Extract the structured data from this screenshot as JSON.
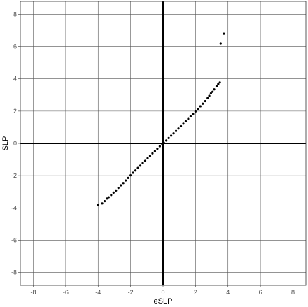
{
  "chart_data": {
    "type": "scatter",
    "title": "",
    "xlabel": "eSLP",
    "ylabel": "SLP",
    "xlim": [
      -8.8,
      8.8
    ],
    "ylim": [
      -8.8,
      8.8
    ],
    "xticks": [
      -8,
      -6,
      -4,
      -2,
      0,
      2,
      4,
      6,
      8
    ],
    "yticks": [
      -8,
      -6,
      -4,
      -2,
      0,
      2,
      4,
      6,
      8
    ],
    "grid": true,
    "zero_lines": true,
    "legend": "none",
    "point_color": "#000000",
    "series": [
      {
        "values": [
          [
            -4.0,
            -3.8
          ],
          [
            -3.75,
            -3.72
          ],
          [
            -3.6,
            -3.58
          ],
          [
            -3.45,
            -3.42
          ],
          [
            -3.35,
            -3.34
          ],
          [
            -3.2,
            -3.2
          ],
          [
            -3.05,
            -3.05
          ],
          [
            -2.9,
            -2.92
          ],
          [
            -2.75,
            -2.76
          ],
          [
            -2.6,
            -2.6
          ],
          [
            -2.45,
            -2.46
          ],
          [
            -2.3,
            -2.3
          ],
          [
            -2.15,
            -2.14
          ],
          [
            -2.0,
            -1.98
          ],
          [
            -1.85,
            -1.82
          ],
          [
            -1.7,
            -1.68
          ],
          [
            -1.55,
            -1.52
          ],
          [
            -1.4,
            -1.38
          ],
          [
            -1.25,
            -1.22
          ],
          [
            -1.1,
            -1.08
          ],
          [
            -0.95,
            -0.92
          ],
          [
            -0.8,
            -0.78
          ],
          [
            -0.65,
            -0.62
          ],
          [
            -0.5,
            -0.48
          ],
          [
            -0.35,
            -0.33
          ],
          [
            -0.2,
            -0.18
          ],
          [
            -0.05,
            -0.04
          ],
          [
            0.05,
            0.04
          ],
          [
            0.2,
            0.18
          ],
          [
            0.35,
            0.33
          ],
          [
            0.5,
            0.48
          ],
          [
            0.65,
            0.62
          ],
          [
            0.8,
            0.77
          ],
          [
            0.95,
            0.92
          ],
          [
            1.1,
            1.07
          ],
          [
            1.25,
            1.22
          ],
          [
            1.4,
            1.37
          ],
          [
            1.55,
            1.52
          ],
          [
            1.7,
            1.68
          ],
          [
            1.85,
            1.82
          ],
          [
            2.0,
            1.98
          ],
          [
            2.15,
            2.14
          ],
          [
            2.3,
            2.3
          ],
          [
            2.45,
            2.46
          ],
          [
            2.6,
            2.62
          ],
          [
            2.75,
            2.8
          ],
          [
            2.85,
            2.95
          ],
          [
            2.95,
            3.1
          ],
          [
            3.05,
            3.2
          ],
          [
            3.15,
            3.35
          ],
          [
            3.3,
            3.55
          ],
          [
            3.4,
            3.68
          ],
          [
            3.5,
            3.78
          ],
          [
            3.55,
            6.2
          ],
          [
            3.75,
            6.8
          ]
        ]
      }
    ]
  }
}
